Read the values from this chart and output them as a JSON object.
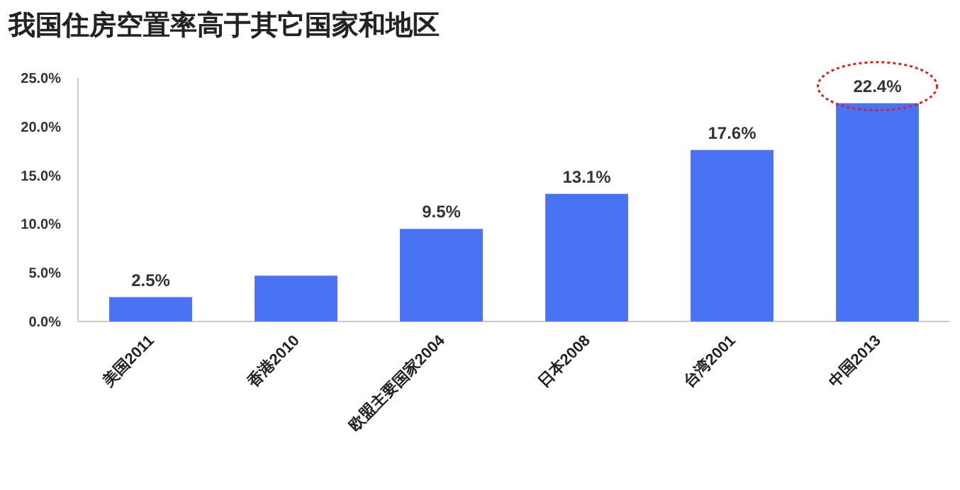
{
  "chart_data": {
    "type": "bar",
    "title": "我国住房空置率高于其它国家和地区",
    "categories": [
      "美国2011",
      "香港2010",
      "欧盟主要国家2004",
      "日本2008",
      "台湾2001",
      "中国2013"
    ],
    "values": [
      2.5,
      4.7,
      9.5,
      13.1,
      17.6,
      22.4
    ],
    "value_labels": [
      "2.5%",
      null,
      "9.5%",
      "13.1%",
      "17.6%",
      "22.4%"
    ],
    "color": "#4a72f5",
    "ylim": [
      0,
      25
    ],
    "yticks": [
      {
        "value": 0,
        "label": "0.0%"
      },
      {
        "value": 5,
        "label": "5.0%"
      },
      {
        "value": 10,
        "label": "10.0%"
      },
      {
        "value": 15,
        "label": "15.0%"
      },
      {
        "value": 20,
        "label": "20.0%"
      },
      {
        "value": 25,
        "label": "25.0%"
      }
    ],
    "grid": false
  }
}
